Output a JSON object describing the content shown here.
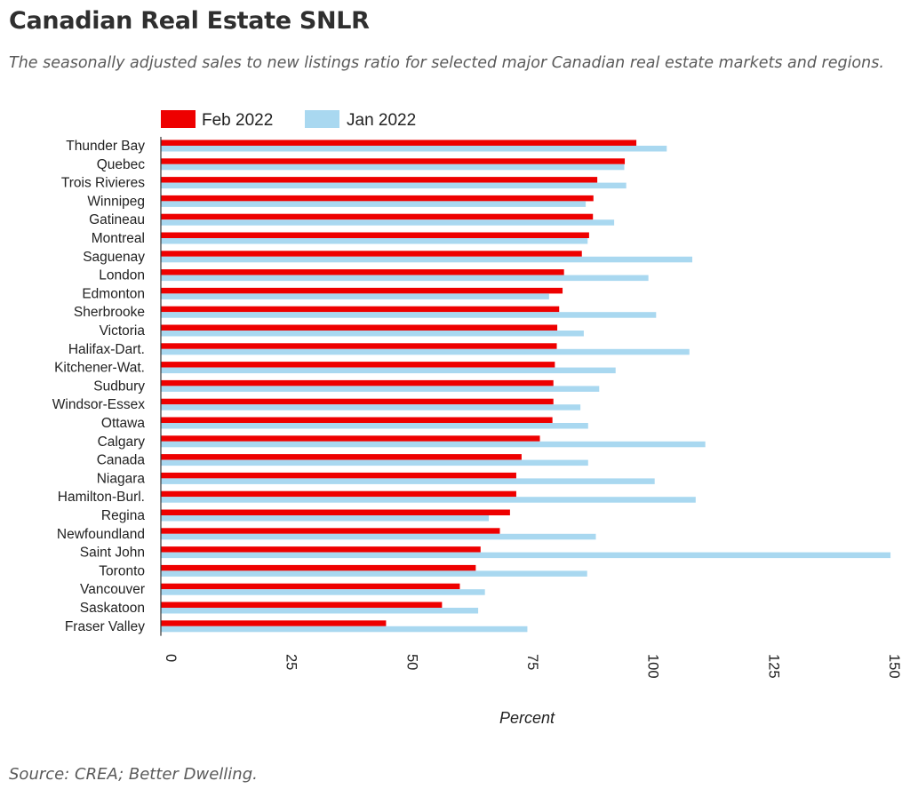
{
  "title": "Canadian Real Estate SNLR",
  "subtitle": "The seasonally adjusted sales to new listings ratio for selected major Canadian real estate markets and regions.",
  "source": "Source: CREA; Better Dwelling.",
  "colors": {
    "feb": "#ee0000",
    "jan": "#a9d8f0",
    "axis": "#333333",
    "text": "#222222"
  },
  "chart_data": {
    "type": "bar",
    "orientation": "horizontal",
    "title": "Canadian Real Estate SNLR",
    "xlabel": "Percent",
    "ylabel": "",
    "xlim": [
      0,
      150
    ],
    "xticks": [
      0,
      25,
      50,
      75,
      100,
      125,
      150
    ],
    "grid": false,
    "legend": "top-left",
    "categories": [
      "Thunder Bay",
      "Quebec",
      "Trois Rivieres",
      "Winnipeg",
      "Gatineau",
      "Montreal",
      "Saguenay",
      "London",
      "Edmonton",
      "Sherbrooke",
      "Victoria",
      "Halifax-Dart.",
      "Kitchener-Wat.",
      "Sudbury",
      "Windsor-Essex",
      "Ottawa",
      "Calgary",
      "Canada",
      "Niagara",
      "Hamilton-Burl.",
      "Regina",
      "Newfoundland",
      "Saint John",
      "Toronto",
      "Vancouver",
      "Saskatoon",
      "Fraser Valley"
    ],
    "series": [
      {
        "name": "Feb 2022",
        "color": "#ee0000",
        "values": [
          98.6,
          96.2,
          90.5,
          89.7,
          89.6,
          88.8,
          87.3,
          83.6,
          83.3,
          82.6,
          82.2,
          82.1,
          81.7,
          81.4,
          81.4,
          81.2,
          78.6,
          74.8,
          73.7,
          73.7,
          72.4,
          70.3,
          66.3,
          65.3,
          62.0,
          58.3,
          46.7
        ]
      },
      {
        "name": "Jan 2022",
        "color": "#a9d8f0",
        "values": [
          104.9,
          96.1,
          96.5,
          88.1,
          94.0,
          88.5,
          110.2,
          101.1,
          80.5,
          102.7,
          87.7,
          109.6,
          94.3,
          90.9,
          87.0,
          88.6,
          112.9,
          88.6,
          102.4,
          110.9,
          68.0,
          90.2,
          151.3,
          88.4,
          67.2,
          65.8,
          76.0
        ]
      }
    ]
  }
}
